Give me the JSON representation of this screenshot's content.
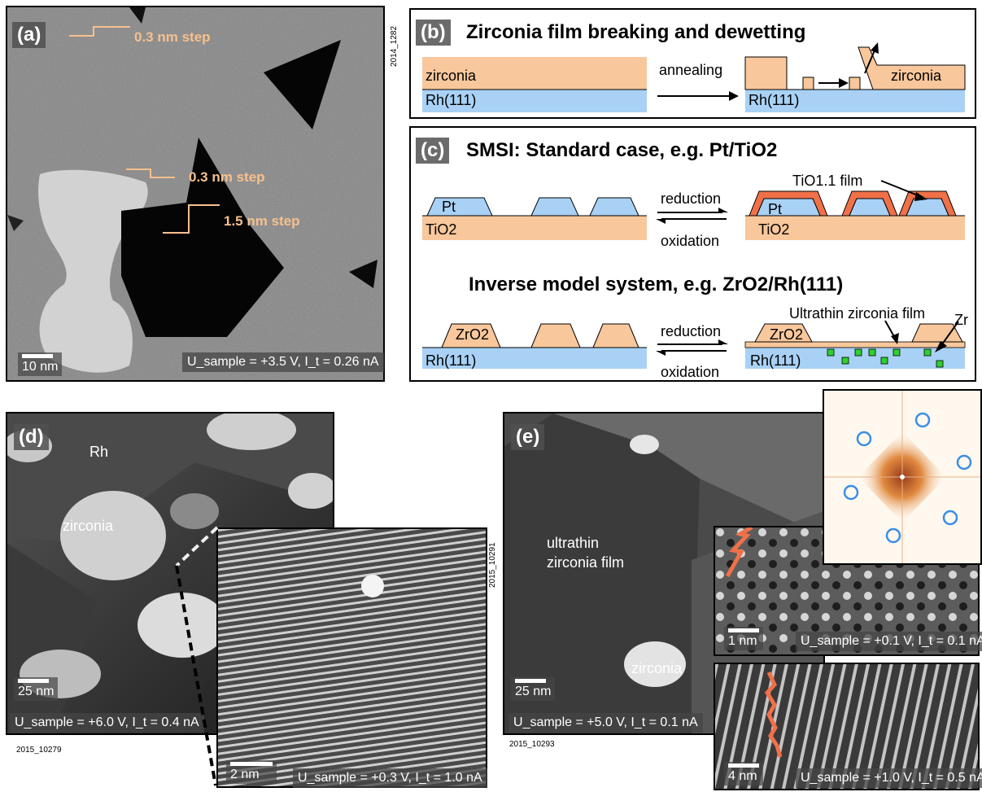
{
  "panel_a": {
    "tag": "(a)",
    "code": "2014_1282",
    "steps": [
      "0.3 nm step",
      "0.3 nm step",
      "1.5 nm step"
    ],
    "scale": "10 nm",
    "conditions": "U_sample = +3.5 V,  I_t = 0.26 nA"
  },
  "panel_b": {
    "tag": "(b)",
    "title": "Zirconia film breaking and dewetting",
    "left_top": "zirconia",
    "left_bottom": "Rh(111)",
    "arrow_label": "annealing",
    "right_top": "zirconia",
    "right_bottom": "Rh(111)"
  },
  "panel_c": {
    "tag": "(c)",
    "title1": "SMSI: Standard case, e.g. Pt/TiO2",
    "pt": "Pt",
    "tio2": "TiO2",
    "film": "TiO1.1 film",
    "reduction": "reduction",
    "oxidation": "oxidation",
    "title2": "Inverse model system, e.g. ZrO2/Rh(111)",
    "zro2": "ZrO2",
    "rh": "Rh(111)",
    "ultrathin": "Ultrathin zirconia film",
    "zr": "Zr"
  },
  "panel_d": {
    "tag": "(d)",
    "rh_label": "Rh",
    "zirconia_label": "zirconia",
    "scale": "25 nm",
    "conditions": "U_sample = +6.0 V,  I_t = 0.4 nA",
    "code": "2015_10279",
    "inset_scale": "2 nm",
    "inset_conditions": "U_sample = +0.3 V,  I_t = 1.0 nA"
  },
  "panel_e": {
    "tag": "(e)",
    "film_label_1": "ultrathin",
    "film_label_2": "zirconia film",
    "zirconia_label": "zirconia",
    "scale": "25 nm",
    "conditions": "U_sample = +5.0 V,  I_t = 0.1 nA",
    "code_side": "2015_10291",
    "code_bottom": "2015_10293",
    "inset1_scale": "1 nm",
    "inset1_conditions": "U_sample = +0.1 V,  I_t = 0.1 nA",
    "inset2_scale": "4 nm",
    "inset2_conditions": "U_sample = +1.0 V,  I_t = 0.5 nA"
  },
  "colors": {
    "zirconia": "#f8c79b",
    "rh": "#a9d1f5",
    "step_text": "#f6c08e",
    "zig": "#f07048",
    "zr_atoms": "#2fd02f",
    "fft_circles": "#3a8ee6"
  }
}
